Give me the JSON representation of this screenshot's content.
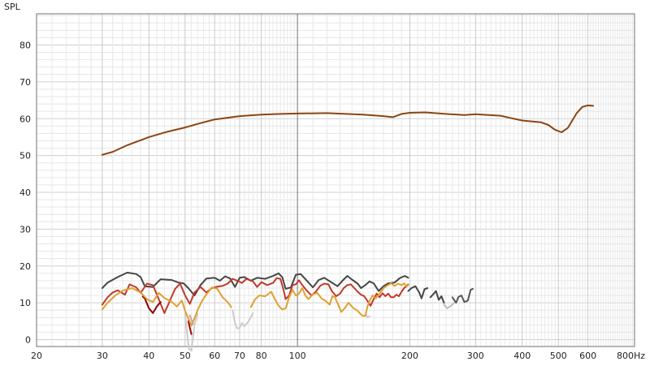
{
  "chart_data": {
    "type": "line",
    "ylabel": "SPL",
    "xlim": [
      20,
      800
    ],
    "ylim": [
      -2,
      90
    ],
    "x_scale": "log",
    "grid": true,
    "y_ticks": [
      0,
      10,
      20,
      30,
      40,
      50,
      60,
      70,
      80
    ],
    "x_ticks": [
      {
        "v": 20,
        "label": "20"
      },
      {
        "v": 30,
        "label": "30"
      },
      {
        "v": 40,
        "label": "40"
      },
      {
        "v": 50,
        "label": "50"
      },
      {
        "v": 60,
        "label": "60"
      },
      {
        "v": 70,
        "label": "70"
      },
      {
        "v": 80,
        "label": "80"
      },
      {
        "v": 100,
        "label": "100"
      },
      {
        "v": 200,
        "label": "200"
      },
      {
        "v": 300,
        "label": "300"
      },
      {
        "v": 400,
        "label": "400"
      },
      {
        "v": 500,
        "label": "500"
      },
      {
        "v": 600,
        "label": "600"
      },
      {
        "v": 800,
        "label": "800Hz"
      }
    ],
    "series": [
      {
        "color": "#8B4513",
        "width": 2,
        "points": [
          [
            30,
            50.2
          ],
          [
            32,
            51
          ],
          [
            35,
            52.8
          ],
          [
            40,
            55
          ],
          [
            45,
            56.5
          ],
          [
            50,
            57.6
          ],
          [
            55,
            58.8
          ],
          [
            60,
            59.8
          ],
          [
            70,
            60.7
          ],
          [
            80,
            61.1
          ],
          [
            90,
            61.3
          ],
          [
            100,
            61.4
          ],
          [
            120,
            61.5
          ],
          [
            150,
            61.1
          ],
          [
            170,
            60.7
          ],
          [
            180,
            60.4
          ],
          [
            190,
            61.3
          ],
          [
            200,
            61.6
          ],
          [
            220,
            61.7
          ],
          [
            250,
            61.3
          ],
          [
            280,
            61
          ],
          [
            300,
            61.2
          ],
          [
            350,
            60.8
          ],
          [
            380,
            60
          ],
          [
            400,
            59.5
          ],
          [
            450,
            59
          ],
          [
            470,
            58.3
          ],
          [
            490,
            57
          ],
          [
            510,
            56.3
          ],
          [
            530,
            57.5
          ],
          [
            560,
            61.5
          ],
          [
            580,
            63.2
          ],
          [
            600,
            63.6
          ],
          [
            620,
            63.5
          ]
        ]
      },
      {
        "color": "#454545",
        "width": 2,
        "points": [
          [
            30,
            14
          ],
          [
            31,
            15.5
          ],
          [
            33,
            17
          ],
          [
            35,
            18.2
          ],
          [
            37,
            17.8
          ],
          [
            38,
            17
          ],
          [
            39,
            14.5
          ],
          [
            41,
            14.3
          ],
          [
            43,
            16.4
          ],
          [
            46,
            16.2
          ],
          [
            48,
            15.5
          ],
          [
            49.5,
            15.3
          ],
          [
            51,
            14
          ],
          [
            53,
            12
          ],
          [
            55,
            14.8
          ],
          [
            57,
            16.6
          ],
          [
            60,
            16.8
          ],
          [
            62,
            16
          ],
          [
            64,
            17.2
          ],
          [
            66,
            16.6
          ],
          [
            68,
            14.3
          ],
          [
            70,
            16.8
          ],
          [
            72,
            17
          ],
          [
            75,
            16
          ],
          [
            78,
            16.8
          ],
          [
            82,
            16.5
          ],
          [
            86,
            17.3
          ],
          [
            89,
            18
          ],
          [
            91,
            17
          ],
          [
            93,
            13.8
          ],
          [
            96,
            14.2
          ],
          [
            99,
            17.6
          ],
          [
            102,
            17.8
          ],
          [
            106,
            16
          ],
          [
            110,
            14.2
          ],
          [
            114,
            16.2
          ],
          [
            118,
            16.8
          ],
          [
            124,
            15.4
          ],
          [
            128,
            14.5
          ],
          [
            132,
            16
          ],
          [
            136,
            17.3
          ],
          [
            140,
            16.3
          ],
          [
            145,
            15.2
          ],
          [
            148,
            14
          ],
          [
            152,
            14.8
          ],
          [
            156,
            15.8
          ],
          [
            160,
            15.3
          ],
          [
            165,
            13.2
          ],
          [
            170,
            14.5
          ],
          [
            175,
            15.3
          ],
          [
            182,
            15.5
          ],
          [
            188,
            16.7
          ],
          [
            194,
            17.3
          ],
          [
            198,
            16.8
          ]
        ]
      },
      {
        "color": "#454545",
        "width": 2,
        "points": [
          [
            198,
            13.2
          ],
          [
            202,
            14
          ],
          [
            207,
            14.5
          ],
          [
            212,
            12.8
          ],
          [
            215,
            11.2
          ],
          [
            219,
            13.7
          ],
          [
            223,
            14
          ]
        ]
      },
      {
        "color": "#454545",
        "width": 2,
        "points": [
          [
            227,
            11.5
          ],
          [
            231,
            12.3
          ],
          [
            235,
            13.2
          ],
          [
            239,
            10.8
          ],
          [
            243,
            11.8
          ],
          [
            247,
            10
          ]
        ]
      },
      {
        "color": "#555555",
        "width": 2,
        "points": [
          [
            260,
            11.5
          ],
          [
            266,
            10
          ],
          [
            270,
            11.6
          ],
          [
            275,
            12
          ],
          [
            280,
            10.2
          ],
          [
            286,
            10.6
          ],
          [
            291,
            13.5
          ],
          [
            295,
            13.8
          ]
        ]
      },
      {
        "color": "#bbbbbb",
        "width": 2,
        "points": [
          [
            247,
            9.5
          ],
          [
            252,
            8.5
          ],
          [
            258,
            9.2
          ],
          [
            263,
            10
          ]
        ]
      },
      {
        "color": "#cccccc",
        "width": 2,
        "points": [
          [
            50,
            7.2
          ],
          [
            50.6,
            2
          ],
          [
            51.2,
            -2.5
          ],
          [
            52,
            -3
          ],
          [
            53,
            4
          ],
          [
            54,
            7
          ]
        ]
      },
      {
        "color": "#cccccc",
        "width": 2,
        "points": [
          [
            67,
            8
          ],
          [
            68,
            4.5
          ],
          [
            69,
            3
          ],
          [
            70,
            3.2
          ],
          [
            71,
            4.5
          ],
          [
            72,
            3.6
          ],
          [
            73,
            4.2
          ],
          [
            74.5,
            5.5
          ],
          [
            76,
            7.2
          ]
        ]
      },
      {
        "color": "#cccccc",
        "width": 2,
        "points": [
          [
            152,
            7
          ],
          [
            154,
            6
          ],
          [
            156,
            6.4
          ]
        ]
      },
      {
        "color": "#c0392b",
        "width": 2,
        "points": [
          [
            30,
            9.5
          ],
          [
            31,
            11.5
          ],
          [
            32,
            12.8
          ],
          [
            33,
            13.4
          ],
          [
            34.5,
            12.2
          ],
          [
            35.5,
            15
          ],
          [
            37,
            14.2
          ],
          [
            38,
            12.7
          ],
          [
            39.5,
            15.2
          ],
          [
            41,
            14.8
          ],
          [
            42.5,
            11
          ],
          [
            44,
            7.2
          ],
          [
            45,
            9.4
          ],
          [
            47,
            13.8
          ],
          [
            48.5,
            15.2
          ],
          [
            50,
            12
          ],
          [
            51.5,
            9.7
          ],
          [
            53,
            12.8
          ],
          [
            55,
            14.3
          ],
          [
            57,
            12.8
          ],
          [
            59,
            14
          ],
          [
            61,
            14.4
          ],
          [
            63,
            14.6
          ],
          [
            65,
            15.2
          ],
          [
            67,
            16.5
          ],
          [
            69,
            16
          ],
          [
            71,
            15.4
          ],
          [
            73,
            16.5
          ],
          [
            76,
            15.8
          ],
          [
            78,
            14.3
          ],
          [
            80,
            15.6
          ],
          [
            83,
            14.8
          ],
          [
            86,
            15.4
          ],
          [
            88,
            16.7
          ],
          [
            90,
            16.5
          ],
          [
            91.5,
            14
          ],
          [
            93,
            11
          ],
          [
            95,
            12
          ],
          [
            97,
            14.8
          ],
          [
            99,
            15
          ],
          [
            101,
            16.1
          ],
          [
            103,
            14.8
          ],
          [
            106,
            13.3
          ],
          [
            109,
            12
          ],
          [
            112,
            13
          ],
          [
            115,
            14.6
          ],
          [
            118,
            15.2
          ],
          [
            121,
            15
          ],
          [
            124,
            13
          ],
          [
            127,
            11.8
          ],
          [
            130,
            12.5
          ],
          [
            133,
            14
          ],
          [
            136,
            14.8
          ],
          [
            139,
            15
          ],
          [
            142,
            14
          ],
          [
            145,
            13
          ],
          [
            148,
            12.2
          ],
          [
            151,
            11.8
          ],
          [
            154,
            10.5
          ],
          [
            157,
            9.2
          ],
          [
            160,
            11
          ],
          [
            163,
            12.5
          ],
          [
            166,
            11.5
          ],
          [
            169,
            12.6
          ],
          [
            172,
            11.8
          ],
          [
            175,
            12.5
          ],
          [
            178,
            11.5
          ],
          [
            181,
            11.5
          ],
          [
            184,
            12.2
          ],
          [
            187,
            11.8
          ],
          [
            190,
            13
          ],
          [
            193,
            14
          ],
          [
            196,
            14.5
          ],
          [
            198,
            15
          ]
        ]
      },
      {
        "color": "#8B0000",
        "width": 2,
        "points": [
          [
            38.5,
            11.7
          ],
          [
            39,
            11.2
          ],
          [
            40,
            8.5
          ],
          [
            41,
            7.2
          ],
          [
            42,
            9
          ],
          [
            43,
            10.2
          ]
        ]
      },
      {
        "color": "#a00000",
        "width": 2,
        "points": [
          [
            51,
            5
          ],
          [
            51.6,
            2.8
          ],
          [
            52,
            1.5
          ]
        ]
      },
      {
        "color": "#e0a030",
        "width": 2,
        "points": [
          [
            30,
            8.2
          ],
          [
            31,
            10
          ],
          [
            32.5,
            12
          ],
          [
            34,
            13.3
          ],
          [
            36,
            14
          ],
          [
            38,
            12.8
          ],
          [
            39.5,
            11
          ],
          [
            41,
            10.2
          ],
          [
            42.5,
            12.7
          ],
          [
            44,
            11.3
          ],
          [
            46,
            10.3
          ],
          [
            47.5,
            9
          ],
          [
            49,
            10.6
          ],
          [
            50,
            7.8
          ],
          [
            51,
            5.8
          ],
          [
            52,
            3.8
          ],
          [
            53,
            5.8
          ],
          [
            54,
            8
          ],
          [
            55.5,
            10.5
          ],
          [
            57,
            12.3
          ],
          [
            59,
            14.2
          ],
          [
            61,
            13.8
          ],
          [
            63,
            11.5
          ],
          [
            65,
            10.2
          ],
          [
            66.5,
            8.8
          ]
        ]
      },
      {
        "color": "#e0a030",
        "width": 2,
        "points": [
          [
            75,
            8.8
          ],
          [
            77,
            11
          ],
          [
            79,
            12
          ],
          [
            82,
            11.8
          ],
          [
            85,
            13
          ],
          [
            87,
            11
          ],
          [
            89,
            9.2
          ],
          [
            91,
            8.2
          ],
          [
            93,
            8.5
          ],
          [
            95,
            11.5
          ],
          [
            97,
            13.5
          ],
          [
            99,
            12
          ],
          [
            101,
            12.5
          ],
          [
            103,
            14
          ],
          [
            105,
            12
          ],
          [
            107,
            11
          ],
          [
            110,
            12.3
          ],
          [
            113,
            12.7
          ],
          [
            116,
            11.2
          ],
          [
            119,
            10.5
          ],
          [
            122,
            9.5
          ],
          [
            124,
            11.8
          ],
          [
            126,
            11.5
          ],
          [
            129,
            9.2
          ],
          [
            131,
            7.5
          ],
          [
            134,
            8.6
          ],
          [
            137,
            10
          ],
          [
            141,
            8.6
          ],
          [
            145,
            7.8
          ],
          [
            148,
            6.8
          ],
          [
            150,
            6.4
          ],
          [
            152,
            6.5
          ],
          [
            154,
            9
          ],
          [
            156,
            10.5
          ],
          [
            159,
            12
          ],
          [
            162,
            11.2
          ],
          [
            166,
            12.5
          ],
          [
            170,
            14
          ],
          [
            174,
            14.7
          ],
          [
            178,
            15.3
          ],
          [
            182,
            14.6
          ],
          [
            186,
            15.2
          ],
          [
            190,
            14.8
          ],
          [
            193,
            15.3
          ],
          [
            196,
            14.4
          ],
          [
            198,
            14.8
          ]
        ]
      },
      {
        "color": "#cfa0a0",
        "width": 2,
        "points": [
          [
            51.5,
            6.6
          ],
          [
            52.5,
            4.2
          ]
        ]
      }
    ]
  }
}
